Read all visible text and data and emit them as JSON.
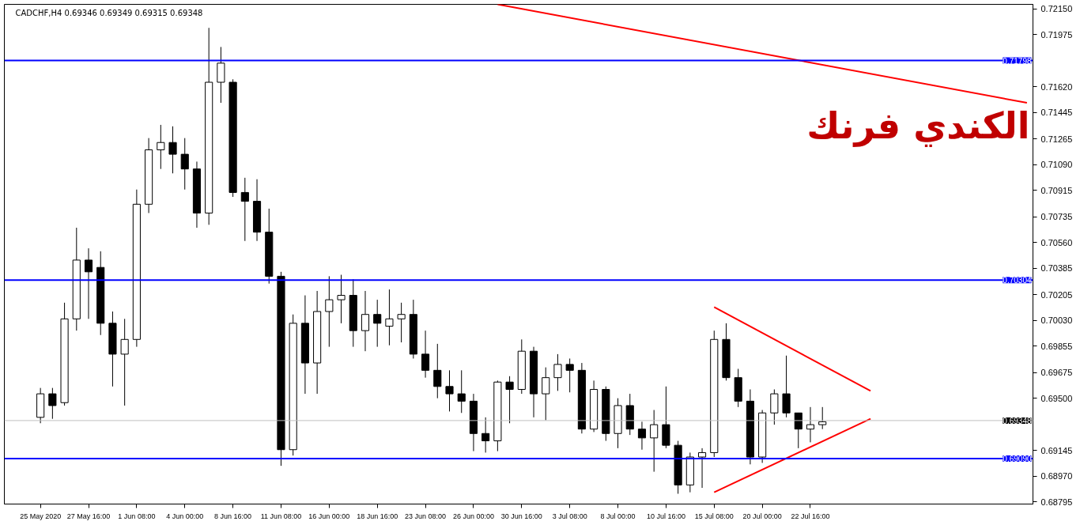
{
  "chart_data": {
    "type": "candlestick",
    "title": "CADCHF,H4  0.69346 0.69349 0.69315 0.69348",
    "categories": [
      "25 May 2020",
      null,
      null,
      null,
      "27 May 16:00",
      null,
      null,
      null,
      "1 Jun 08:00",
      null,
      null,
      null,
      "4 Jun 00:00",
      null,
      null,
      null,
      "8 Jun 16:00",
      null,
      null,
      null,
      "11 Jun 08:00",
      null,
      null,
      null,
      "16 Jun 00:00",
      null,
      null,
      null,
      "18 Jun 16:00",
      null,
      null,
      null,
      "23 Jun 08:00",
      null,
      null,
      null,
      "26 Jun 00:00",
      null,
      null,
      null,
      "30 Jun 16:00",
      null,
      null,
      null,
      "3 Jul 08:00",
      null,
      null,
      null,
      "8 Jul 00:00",
      null,
      null,
      null,
      "10 Jul 16:00",
      null,
      null,
      null,
      "15 Jul 08:00",
      null,
      null,
      null,
      "20 Jul 00:00",
      null,
      null,
      null,
      "22 Jul 16:00",
      null,
      null,
      null,
      null,
      null,
      null,
      null,
      null,
      null,
      null,
      null,
      null,
      null,
      null,
      null,
      null,
      null,
      null
    ],
    "ohlc": [
      [
        0.6937,
        0.6957,
        0.6933,
        0.6953
      ],
      [
        0.6953,
        0.6957,
        0.6936,
        0.6945
      ],
      [
        0.6947,
        0.7015,
        0.6945,
        0.7004
      ],
      [
        0.7004,
        0.7066,
        0.6996,
        0.7044
      ],
      [
        0.7044,
        0.7052,
        0.7004,
        0.7036
      ],
      [
        0.7039,
        0.705,
        0.6993,
        0.7001
      ],
      [
        0.7001,
        0.7009,
        0.6958,
        0.698
      ],
      [
        0.698,
        0.7004,
        0.6945,
        0.699
      ],
      [
        0.699,
        0.7092,
        0.6985,
        0.7082
      ],
      [
        0.7082,
        0.7127,
        0.7076,
        0.7119
      ],
      [
        0.7119,
        0.7136,
        0.7106,
        0.7124
      ],
      [
        0.7124,
        0.7135,
        0.7103,
        0.7116
      ],
      [
        0.7116,
        0.7127,
        0.7092,
        0.7106
      ],
      [
        0.7106,
        0.7111,
        0.7066,
        0.7076
      ],
      [
        0.7076,
        0.7202,
        0.7068,
        0.7165
      ],
      [
        0.7165,
        0.7189,
        0.7151,
        0.7178
      ],
      [
        0.7165,
        0.7167,
        0.7087,
        0.709
      ],
      [
        0.709,
        0.71,
        0.7057,
        0.7084
      ],
      [
        0.7084,
        0.7099,
        0.7057,
        0.7063
      ],
      [
        0.7063,
        0.7079,
        0.7028,
        0.7033
      ],
      [
        0.7033,
        0.7036,
        0.6904,
        0.6915
      ],
      [
        0.6915,
        0.7007,
        0.6911,
        0.7001
      ],
      [
        0.7001,
        0.702,
        0.6953,
        0.6974
      ],
      [
        0.6974,
        0.7023,
        0.6953,
        0.7009
      ],
      [
        0.7009,
        0.7033,
        0.6985,
        0.7017
      ],
      [
        0.7017,
        0.7034,
        0.7001,
        0.702
      ],
      [
        0.702,
        0.7031,
        0.6985,
        0.6996
      ],
      [
        0.6996,
        0.7023,
        0.6982,
        0.7007
      ],
      [
        0.7007,
        0.7017,
        0.6985,
        0.7001
      ],
      [
        0.6999,
        0.7024,
        0.6986,
        0.7004
      ],
      [
        0.7004,
        0.7015,
        0.6988,
        0.7007
      ],
      [
        0.7007,
        0.7017,
        0.6977,
        0.698
      ],
      [
        0.698,
        0.6996,
        0.6964,
        0.6969
      ],
      [
        0.6969,
        0.6987,
        0.695,
        0.6958
      ],
      [
        0.6958,
        0.6969,
        0.6941,
        0.6953
      ],
      [
        0.6953,
        0.6969,
        0.694,
        0.6948
      ],
      [
        0.6948,
        0.6953,
        0.6914,
        0.6926
      ],
      [
        0.6926,
        0.6937,
        0.6913,
        0.6921
      ],
      [
        0.6921,
        0.6962,
        0.6914,
        0.6961
      ],
      [
        0.6961,
        0.6965,
        0.6933,
        0.6956
      ],
      [
        0.6956,
        0.699,
        0.6953,
        0.6982
      ],
      [
        0.6982,
        0.6985,
        0.6937,
        0.6953
      ],
      [
        0.6953,
        0.6971,
        0.6935,
        0.6964
      ],
      [
        0.6964,
        0.698,
        0.6955,
        0.6973
      ],
      [
        0.6973,
        0.6977,
        0.6954,
        0.6969
      ],
      [
        0.6969,
        0.6974,
        0.6926,
        0.6929
      ],
      [
        0.6929,
        0.6962,
        0.6927,
        0.6956
      ],
      [
        0.6956,
        0.6958,
        0.6921,
        0.6926
      ],
      [
        0.6926,
        0.695,
        0.6916,
        0.6945
      ],
      [
        0.6945,
        0.6953,
        0.6925,
        0.6929
      ],
      [
        0.6929,
        0.6934,
        0.6915,
        0.6923
      ],
      [
        0.6923,
        0.6942,
        0.69,
        0.6932
      ],
      [
        0.6932,
        0.6958,
        0.6916,
        0.6918
      ],
      [
        0.6918,
        0.6921,
        0.6885,
        0.6891
      ],
      [
        0.6891,
        0.6913,
        0.6886,
        0.691
      ],
      [
        0.691,
        0.6916,
        0.6889,
        0.6913
      ],
      [
        0.6913,
        0.6996,
        0.691,
        0.699
      ],
      [
        0.699,
        0.7001,
        0.6962,
        0.6964
      ],
      [
        0.6964,
        0.697,
        0.6944,
        0.6948
      ],
      [
        0.6948,
        0.6956,
        0.6905,
        0.691
      ],
      [
        0.691,
        0.6942,
        0.6906,
        0.694
      ],
      [
        0.694,
        0.6956,
        0.6932,
        0.6953
      ],
      [
        0.6953,
        0.6979,
        0.6937,
        0.694
      ],
      [
        0.694,
        0.694,
        0.6916,
        0.6929
      ],
      [
        0.6929,
        0.6944,
        0.692,
        0.6932
      ],
      [
        0.6932,
        0.6944,
        0.6929,
        0.6934
      ],
      null,
      null,
      null,
      null,
      null,
      null,
      null,
      null,
      null,
      null,
      null,
      null,
      null,
      null,
      null,
      null,
      null
    ],
    "series": [
      {
        "type": "line",
        "color": "#ff0000",
        "values": [
          null,
          null,
          null,
          null,
          null,
          null,
          null,
          null,
          null,
          null,
          null,
          null,
          null,
          null,
          null,
          null,
          null,
          null,
          null,
          null,
          null,
          null,
          null,
          null,
          null,
          null,
          null,
          null,
          null,
          null,
          null,
          null,
          null,
          null,
          null,
          null,
          null,
          null,
          0.7218,
          null,
          null,
          null,
          null,
          null,
          null,
          null,
          null,
          null,
          null,
          null,
          null,
          null,
          null,
          null,
          null,
          null,
          null,
          null,
          null,
          null,
          null,
          null,
          null,
          null,
          null,
          null,
          null,
          null,
          null,
          null,
          null,
          null,
          null,
          null,
          null,
          null,
          null,
          null,
          null,
          null,
          null,
          null,
          0.7151
        ]
      },
      {
        "type": "line",
        "color": "#ff0000",
        "values": [
          null,
          null,
          null,
          null,
          null,
          null,
          null,
          null,
          null,
          null,
          null,
          null,
          null,
          null,
          null,
          null,
          null,
          null,
          null,
          null,
          null,
          null,
          null,
          null,
          null,
          null,
          null,
          null,
          null,
          null,
          null,
          null,
          null,
          null,
          null,
          null,
          null,
          null,
          null,
          null,
          null,
          null,
          null,
          null,
          null,
          null,
          null,
          null,
          null,
          null,
          null,
          null,
          null,
          null,
          null,
          null,
          0.7012,
          null,
          null,
          null,
          null,
          null,
          null,
          null,
          null,
          null,
          null,
          null,
          null,
          0.6955,
          null,
          null,
          null,
          null,
          null,
          null,
          null,
          null,
          null,
          null,
          null,
          null,
          null
        ]
      },
      {
        "type": "line",
        "color": "#ff0000",
        "values": [
          null,
          null,
          null,
          null,
          null,
          null,
          null,
          null,
          null,
          null,
          null,
          null,
          null,
          null,
          null,
          null,
          null,
          null,
          null,
          null,
          null,
          null,
          null,
          null,
          null,
          null,
          null,
          null,
          null,
          null,
          null,
          null,
          null,
          null,
          null,
          null,
          null,
          null,
          null,
          null,
          null,
          null,
          null,
          null,
          null,
          null,
          null,
          null,
          null,
          null,
          null,
          null,
          null,
          null,
          null,
          null,
          0.6886,
          null,
          null,
          null,
          null,
          null,
          null,
          null,
          null,
          null,
          null,
          null,
          null,
          0.6936,
          null,
          null,
          null,
          null,
          null,
          null,
          null,
          null,
          null,
          null,
          null,
          null,
          null
        ]
      }
    ],
    "ylim": [
      0.6878,
      0.7218
    ],
    "yticks": [
      {
        "value": 0.7215,
        "label": "0.72150"
      },
      {
        "value": 0.71975,
        "label": "0.71975"
      },
      {
        "value": 0.7162,
        "label": "0.71620"
      },
      {
        "value": 0.71445,
        "label": "0.71445"
      },
      {
        "value": 0.71265,
        "label": "0.71265"
      },
      {
        "value": 0.7109,
        "label": "0.71090"
      },
      {
        "value": 0.70915,
        "label": "0.70915"
      },
      {
        "value": 0.70735,
        "label": "0.70735"
      },
      {
        "value": 0.7056,
        "label": "0.70560"
      },
      {
        "value": 0.70385,
        "label": "0.70385"
      },
      {
        "value": 0.70205,
        "label": "0.70205"
      },
      {
        "value": 0.7003,
        "label": "0.70030"
      },
      {
        "value": 0.69855,
        "label": "0.69855"
      },
      {
        "value": 0.69675,
        "label": "0.69675"
      },
      {
        "value": 0.695,
        "label": "0.69500"
      },
      {
        "value": 0.69145,
        "label": "0.69145"
      },
      {
        "value": 0.6897,
        "label": "0.68970"
      },
      {
        "value": 0.68795,
        "label": "0.68795"
      }
    ],
    "ref_lines": [
      {
        "axis": "y",
        "value": 0.71798,
        "label": "0.71798",
        "color": "#0000ff"
      },
      {
        "axis": "y",
        "value": 0.70304,
        "label": "0.70304",
        "color": "#0000ff"
      },
      {
        "axis": "y",
        "value": 0.6909,
        "label": "0.69090",
        "color": "#0000ff"
      },
      {
        "axis": "y",
        "value": 0.69348,
        "label": "0.69348",
        "color": "#c0c0c0"
      }
    ],
    "annotations": [
      "الكندي فرنك"
    ]
  }
}
